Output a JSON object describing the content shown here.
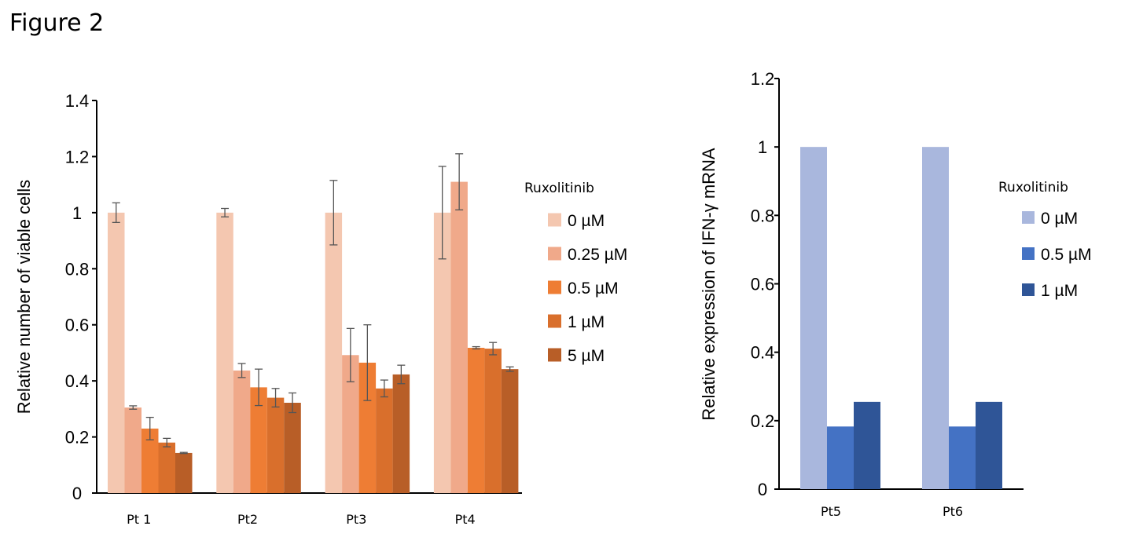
{
  "figure_title": "Figure 2",
  "chart_data": [
    {
      "type": "bar",
      "ylabel": "Relative number of viable cells",
      "ylim": [
        0,
        1.4
      ],
      "yticks": [
        "0",
        "0.2",
        "0.4",
        "0.6",
        "0.8",
        "1",
        "1.2",
        "1.4"
      ],
      "categories": [
        "Pt 1",
        "Pt2",
        "Pt3",
        "Pt4"
      ],
      "legend_title": "Ruxolitinib",
      "legend_position": "right",
      "series": [
        {
          "name": "0 µM",
          "color": "#f4c7b0",
          "values": [
            1.0,
            1.0,
            1.0,
            1.0
          ],
          "errors": [
            0.035,
            0.015,
            0.115,
            0.165
          ]
        },
        {
          "name": "0.25 µM",
          "color": "#f0a98a",
          "values": [
            0.305,
            0.437,
            0.492,
            1.11
          ],
          "errors": [
            0.006,
            0.025,
            0.095,
            0.1
          ]
        },
        {
          "name": "0.5 µM",
          "color": "#ee7d34",
          "values": [
            0.23,
            0.377,
            0.465,
            0.518
          ],
          "errors": [
            0.04,
            0.065,
            0.135,
            0.004
          ]
        },
        {
          "name": "1 µM",
          "color": "#d96f2c",
          "values": [
            0.18,
            0.34,
            0.373,
            0.515
          ],
          "errors": [
            0.015,
            0.033,
            0.03,
            0.022
          ]
        },
        {
          "name": "5 µM",
          "color": "#b85e27",
          "values": [
            0.143,
            0.322,
            0.423,
            0.442
          ],
          "errors": [
            0.002,
            0.035,
            0.033,
            0.008
          ]
        }
      ]
    },
    {
      "type": "bar",
      "ylabel": "Relative expression of IFN-γ mRNA",
      "ylim": [
        0,
        1.2
      ],
      "yticks": [
        "0",
        "0.2",
        "0.4",
        "0.6",
        "0.8",
        "1",
        "1.2"
      ],
      "categories": [
        "Pt5",
        "Pt6"
      ],
      "legend_title": "Ruxolitinib",
      "legend_position": "right",
      "series": [
        {
          "name": "0 µM",
          "color": "#a9b7dd",
          "values": [
            1.0,
            1.0
          ]
        },
        {
          "name": "0.5 µM",
          "color": "#4472c4",
          "values": [
            0.183,
            0.183
          ]
        },
        {
          "name": "1 µM",
          "color": "#2f5597",
          "values": [
            0.255,
            0.255
          ]
        }
      ]
    }
  ]
}
